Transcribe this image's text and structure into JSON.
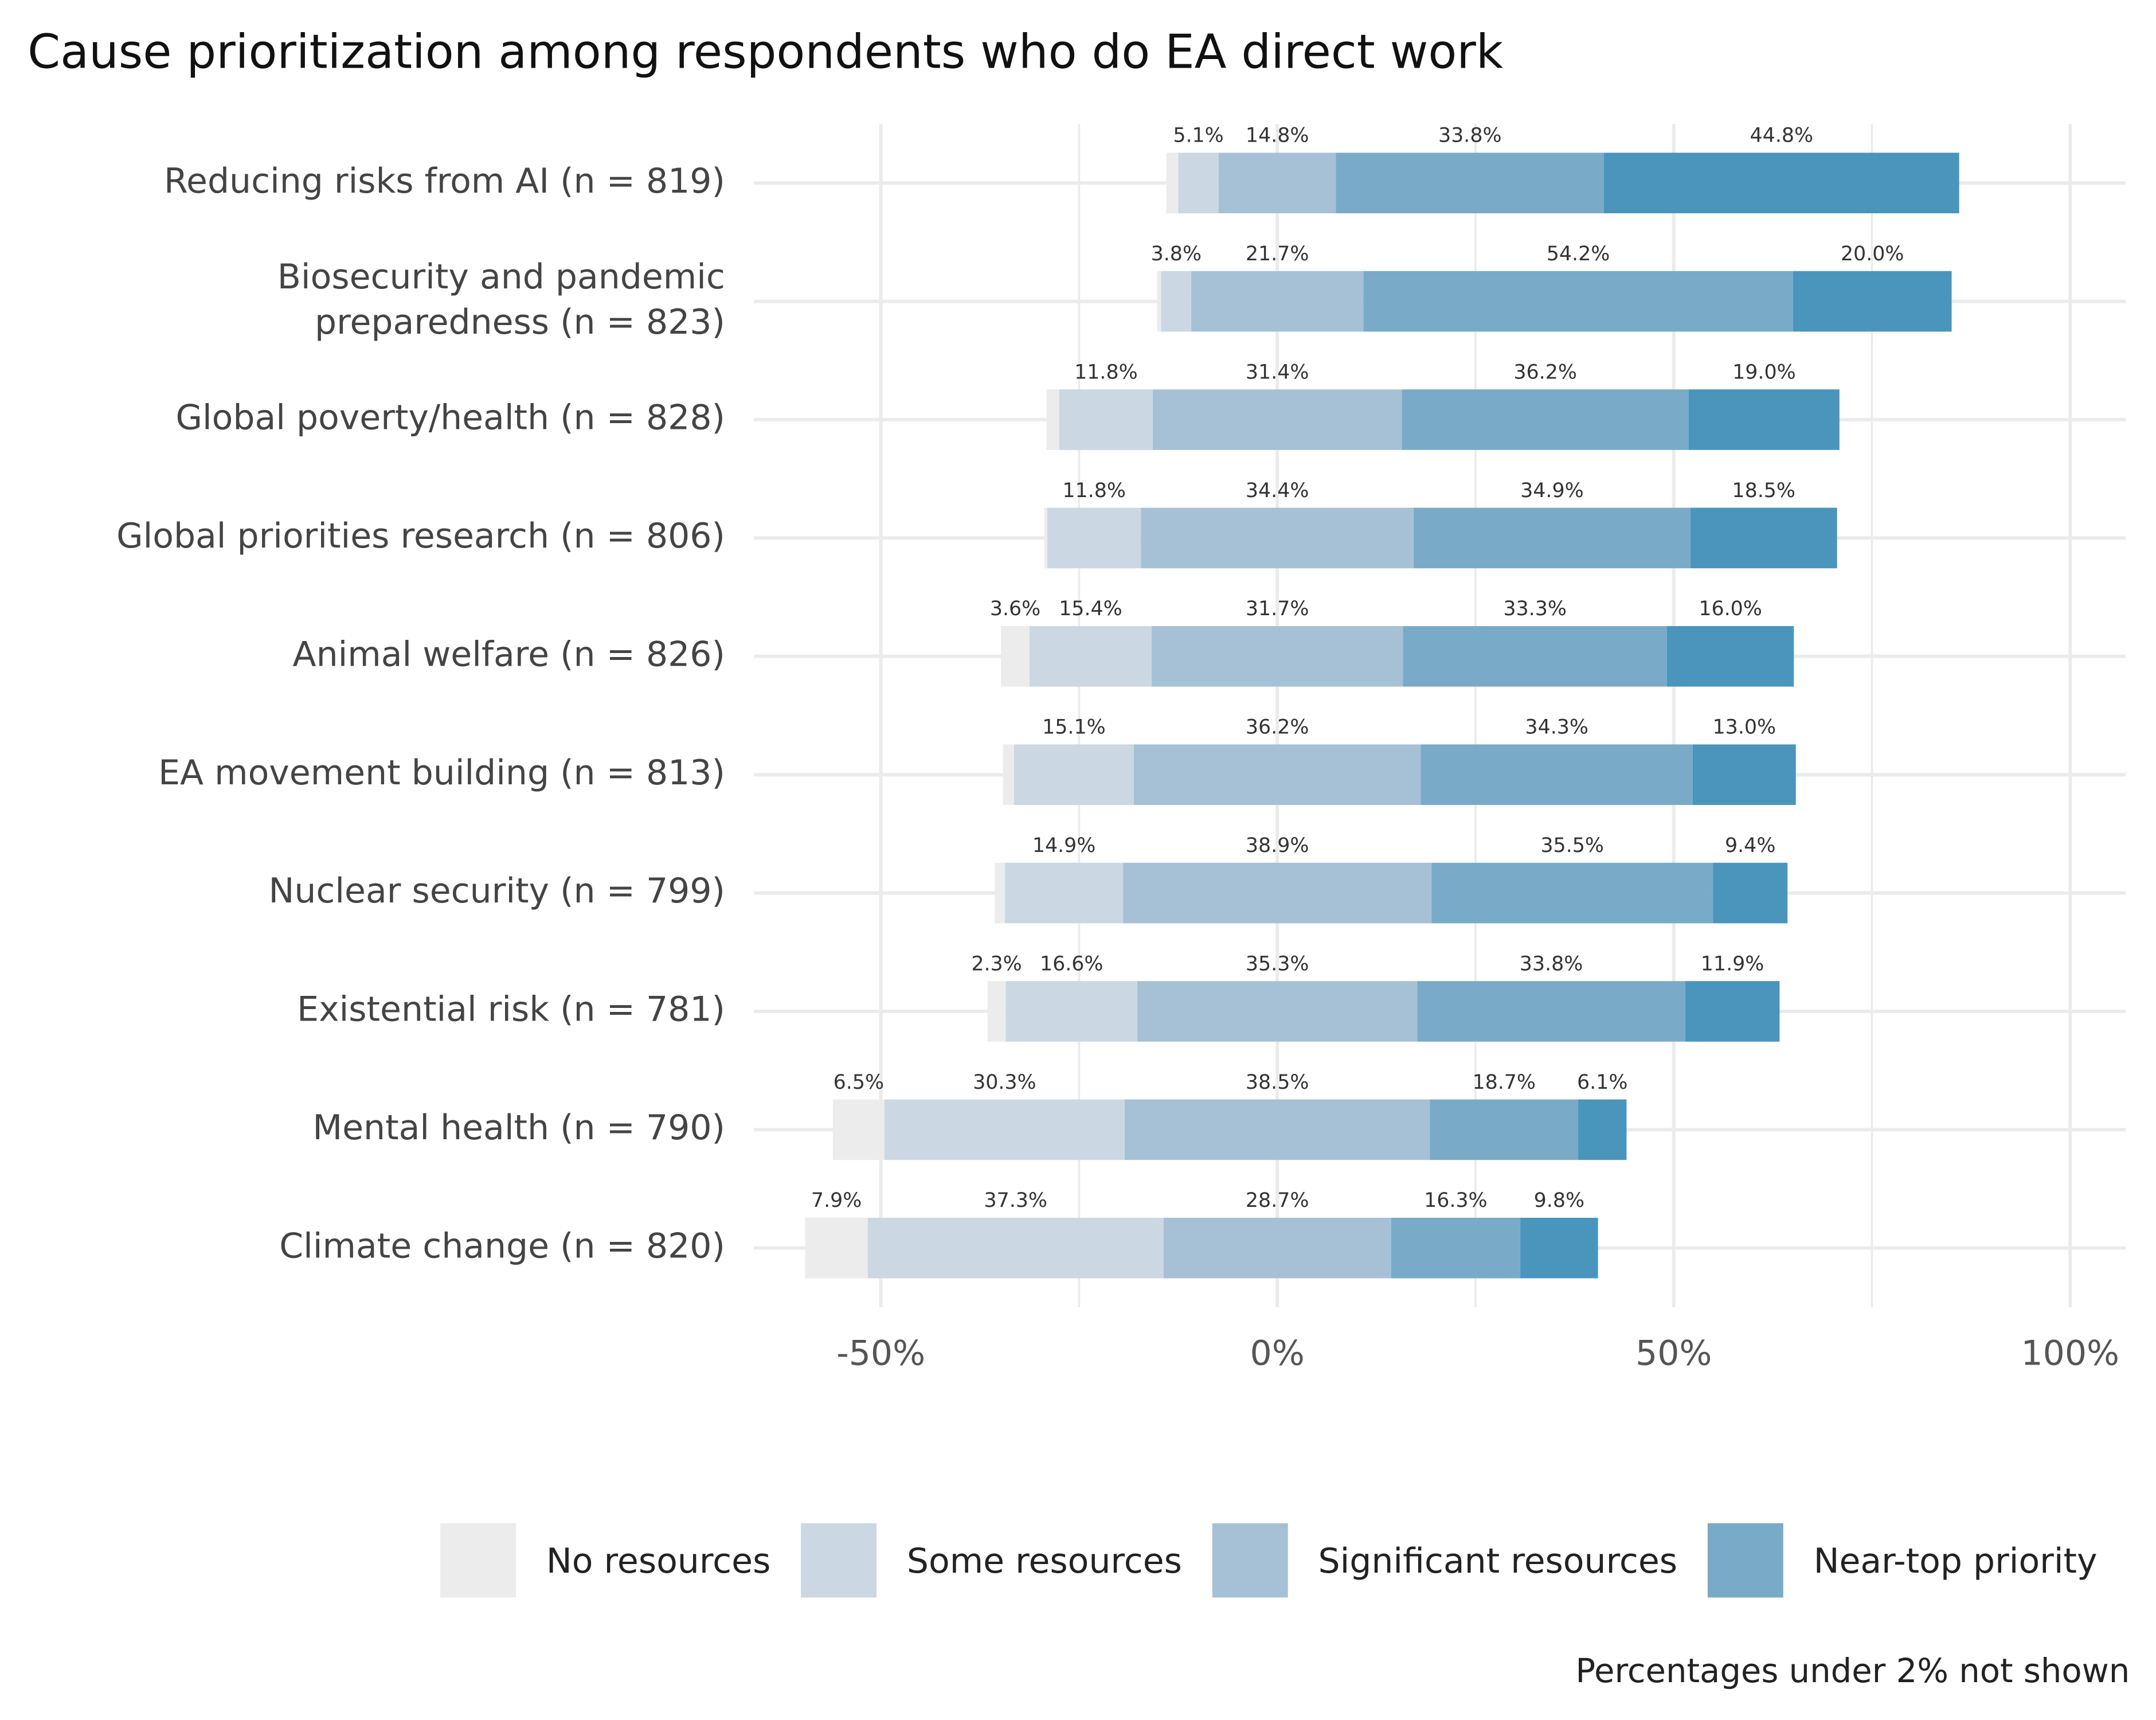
{
  "chart_data": {
    "type": "diverging_stacked_bar",
    "title": "Cause prioritization among respondents who do EA direct work",
    "caption": "Percentages under 2% not shown",
    "categories": [
      "Reducing risks from AI (n = 819)",
      "Biosecurity and pandemic\npreparedness (n = 823)",
      "Global poverty/health (n = 828)",
      "Global priorities research (n = 806)",
      "Animal welfare (n = 826)",
      "EA movement building (n = 813)",
      "Nuclear security (n = 799)",
      "Existential risk (n = 781)",
      "Mental health (n = 790)",
      "Climate change (n = 820)"
    ],
    "center_series": 2,
    "series": [
      {
        "name": "No resources",
        "color": "#ececec",
        "values": [
          1.5,
          0.5,
          1.6,
          0.4,
          3.6,
          1.4,
          1.3,
          2.3,
          6.5,
          7.9
        ],
        "value_labels": [
          null,
          null,
          null,
          null,
          "3.6%",
          null,
          null,
          "2.3%",
          "6.5%",
          "7.9%"
        ]
      },
      {
        "name": "Some resources",
        "color": "#cbd8e3",
        "values": [
          5.1,
          3.8,
          11.8,
          11.8,
          15.4,
          15.1,
          14.9,
          16.6,
          30.3,
          37.3
        ],
        "value_labels": [
          "5.1%",
          "3.8%",
          "11.8%",
          "11.8%",
          "15.4%",
          "15.1%",
          "14.9%",
          "16.6%",
          "30.3%",
          "37.3%"
        ]
      },
      {
        "name": "Significant resources",
        "color": "#a6c1d6",
        "values": [
          14.8,
          21.7,
          31.4,
          34.4,
          31.7,
          36.2,
          38.9,
          35.3,
          38.5,
          28.7
        ],
        "value_labels": [
          "14.8%",
          "21.7%",
          "31.4%",
          "34.4%",
          "31.7%",
          "36.2%",
          "38.9%",
          "35.3%",
          "38.5%",
          "28.7%"
        ]
      },
      {
        "name": "Near-top priority",
        "color": "#79abc9",
        "values": [
          33.8,
          54.2,
          36.2,
          34.9,
          33.3,
          34.3,
          35.5,
          33.8,
          18.7,
          16.3
        ],
        "value_labels": [
          "33.8%",
          "54.2%",
          "36.2%",
          "34.9%",
          "33.3%",
          "34.3%",
          "35.5%",
          "33.8%",
          "18.7%",
          "16.3%"
        ]
      },
      {
        "color": "#4a95bc",
        "values": [
          44.8,
          20.0,
          19.0,
          18.5,
          16.0,
          13.0,
          9.4,
          11.9,
          6.1,
          9.8
        ],
        "value_labels": [
          "44.8%",
          "20.0%",
          "19.0%",
          "18.5%",
          "16.0%",
          "13.0%",
          "9.4%",
          "11.9%",
          "6.1%",
          "9.8%"
        ]
      }
    ],
    "xlim": [
      -66,
      107
    ],
    "xticks": [
      {
        "value": -50,
        "label": "-50%"
      },
      {
        "value": 0,
        "label": "0%"
      },
      {
        "value": 50,
        "label": "50%"
      },
      {
        "value": 100,
        "label": "100%"
      }
    ],
    "xticks_minor": [
      -25,
      25,
      75
    ],
    "grid": true
  }
}
